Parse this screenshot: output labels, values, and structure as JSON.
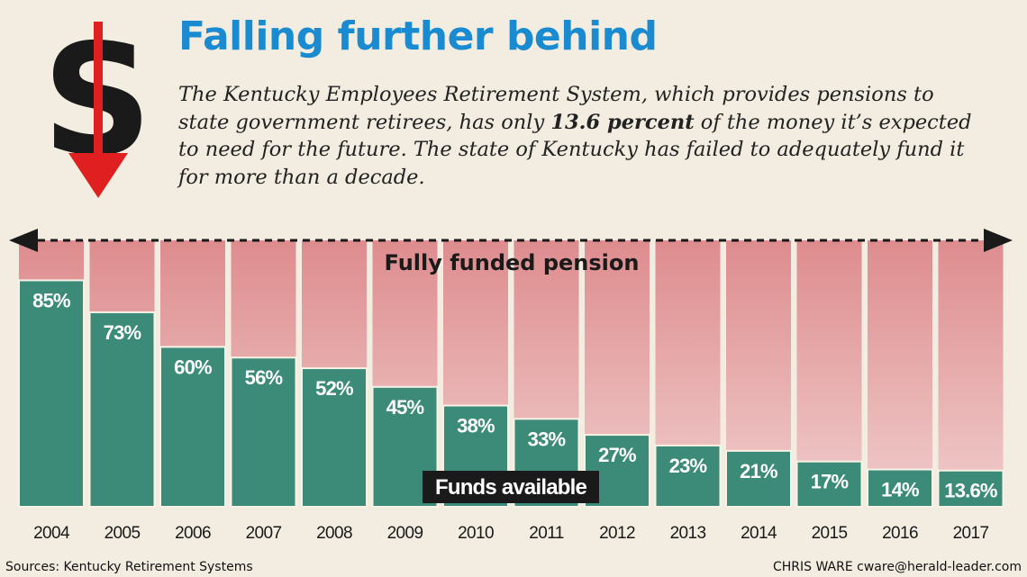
{
  "header": {
    "title": "Falling further behind",
    "subtitle_parts": [
      "The Kentucky Employees Retirement System, which provides pensions to state government retirees, has only ",
      "13.6 percent",
      " of the money it’s expected to need for the future. The state of Kentucky has failed to adequately fund it for more than a decade."
    ]
  },
  "footer": {
    "source": "Sources: Kentucky Retirement Systems",
    "credit": "CHRIS WARE cware@herald-leader.com"
  },
  "colors": {
    "background": "#f2ede0",
    "title": "#1b8bd1",
    "funds_bar": "#3c8a78",
    "unfunded_top": "#de8c8e",
    "unfunded_bottom": "#f0cdcc",
    "arrow": "#e02020"
  },
  "chart_data": {
    "type": "bar",
    "categories": [
      "2004",
      "2005",
      "2006",
      "2007",
      "2008",
      "2009",
      "2010",
      "2011",
      "2012",
      "2013",
      "2014",
      "2015",
      "2016",
      "2017"
    ],
    "values": [
      85,
      73,
      60,
      56,
      52,
      45,
      38,
      33,
      27,
      23,
      21,
      17,
      14,
      13.6
    ],
    "data_labels": [
      "85%",
      "73%",
      "60%",
      "56%",
      "52%",
      "45%",
      "38%",
      "33%",
      "27%",
      "23%",
      "21%",
      "17%",
      "14%",
      "13.6%"
    ],
    "ylim": [
      0,
      100
    ],
    "reference_label": "Fully funded pension",
    "series_label": "Funds available",
    "grid": false
  }
}
